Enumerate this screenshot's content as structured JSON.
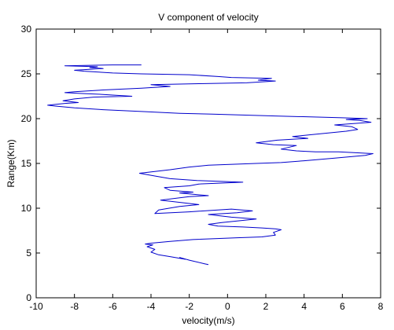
{
  "chart_data": {
    "type": "line",
    "title": "V component of velocity",
    "xlabel": "velocity(m/s)",
    "ylabel": "Range(Km)",
    "xlim": [
      -10,
      8
    ],
    "ylim": [
      0,
      30
    ],
    "xticks": [
      -10,
      -8,
      -6,
      -4,
      -2,
      0,
      2,
      4,
      6,
      8
    ],
    "yticks": [
      0,
      5,
      10,
      15,
      20,
      25,
      30
    ],
    "grid": false,
    "series": [
      {
        "color": "#0000cc",
        "x": [
          -1.0,
          -1.2,
          -2.0,
          -2.5,
          -2.2,
          -3.0,
          -3.6,
          -4.0,
          -3.8,
          -4.2,
          -3.9,
          -4.3,
          -4.0,
          -3.0,
          -1.8,
          0.5,
          1.8,
          2.5,
          2.4,
          2.8,
          2.5,
          1.8,
          0.8,
          -0.5,
          -1.0,
          -0.3,
          1.5,
          0.2,
          -1.0,
          0.5,
          1.3,
          0.2,
          -2.0,
          -3.8,
          -3.6,
          -2.5,
          -1.5,
          -3.5,
          -2.0,
          -1.0,
          -2.5,
          -1.8,
          -3.0,
          -3.3,
          -2.0,
          -1.5,
          0.8,
          -1.6,
          -3.0,
          -3.8,
          -4.6,
          -3.0,
          -2.0,
          -1.0,
          1.5,
          2.8,
          4.0,
          5.6,
          7.2,
          7.6,
          5.8,
          4.6,
          3.6,
          2.8,
          3.6,
          2.4,
          1.5,
          2.6,
          4.2,
          3.4,
          4.8,
          6.2,
          6.8,
          6.5,
          5.6,
          7.5,
          6.9,
          6.2,
          7.3,
          6.0,
          2.5,
          -0.8,
          -2.5,
          -4.5,
          -6.5,
          -8.0,
          -9.0,
          -9.4,
          -8.5,
          -7.8,
          -8.6,
          -8.0,
          -7.0,
          -5.0,
          -6.5,
          -7.5,
          -8.5,
          -8.0,
          -6.5,
          -4.5,
          -3.0,
          -4.0,
          -1.5,
          1.0,
          2.5,
          1.6,
          2.3,
          0.2,
          -0.5,
          -2.0,
          -4.5,
          -6.0,
          -7.5,
          -8.0,
          -6.5,
          -7.2,
          -6.8,
          -8.5,
          -6.0,
          -5.0,
          -4.5
        ],
        "y": [
          3.7,
          3.8,
          4.2,
          4.5,
          4.3,
          4.6,
          4.8,
          5.1,
          5.4,
          5.7,
          5.9,
          6.0,
          6.1,
          6.3,
          6.5,
          6.7,
          6.8,
          7.0,
          7.3,
          7.6,
          7.7,
          7.8,
          7.9,
          8.0,
          8.2,
          8.4,
          8.8,
          9.0,
          9.3,
          9.5,
          9.7,
          9.9,
          9.6,
          9.4,
          9.8,
          10.2,
          10.4,
          10.9,
          11.3,
          11.4,
          11.7,
          11.8,
          12.0,
          12.3,
          12.5,
          12.7,
          12.9,
          13.1,
          13.3,
          13.6,
          13.9,
          14.3,
          14.6,
          14.8,
          15.0,
          15.1,
          15.3,
          15.6,
          15.9,
          16.1,
          16.3,
          16.3,
          16.4,
          16.6,
          17.0,
          17.1,
          17.3,
          17.6,
          17.8,
          18.0,
          18.3,
          18.6,
          18.8,
          19.1,
          19.3,
          19.6,
          19.8,
          19.9,
          20.0,
          20.1,
          20.3,
          20.5,
          20.6,
          20.8,
          21.0,
          21.2,
          21.4,
          21.5,
          21.7,
          21.8,
          22.0,
          22.2,
          22.4,
          22.5,
          22.7,
          22.8,
          22.9,
          23.0,
          23.2,
          23.4,
          23.6,
          23.8,
          23.9,
          24.0,
          24.2,
          24.3,
          24.5,
          24.6,
          24.7,
          24.9,
          25.0,
          25.1,
          25.3,
          25.4,
          25.6,
          25.7,
          25.8,
          25.9,
          26.0,
          26.0,
          26.0
        ]
      }
    ]
  }
}
